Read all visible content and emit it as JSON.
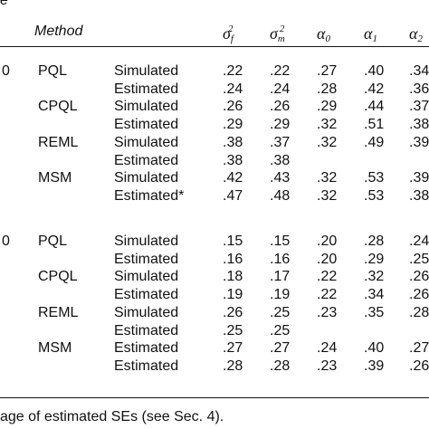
{
  "table": {
    "corner_fragment": "e",
    "method_header": "Method",
    "columns": [
      "σ_f^2",
      "σ_m^2",
      "α_0",
      "α_1",
      "α_2"
    ],
    "col_display": [
      {
        "base": "σ",
        "sub": "f",
        "sup": "2"
      },
      {
        "base": "σ",
        "sub": "m",
        "sup": "2"
      },
      {
        "base": "α",
        "sub": "0",
        "sup": ""
      },
      {
        "base": "α",
        "sub": "1",
        "sup": ""
      },
      {
        "base": "α",
        "sub": "2",
        "sup": ""
      }
    ],
    "groups": [
      {
        "size_fragment": "0",
        "methods": [
          {
            "name": "PQL",
            "rows": [
              {
                "type": "Simulated",
                "values": [
                  ".22",
                  ".22",
                  ".27",
                  ".40",
                  ".34"
                ]
              },
              {
                "type": "Estimated",
                "values": [
                  ".24",
                  ".24",
                  ".28",
                  ".42",
                  ".36"
                ]
              }
            ]
          },
          {
            "name": "CPQL",
            "rows": [
              {
                "type": "Simulated",
                "values": [
                  ".26",
                  ".26",
                  ".29",
                  ".44",
                  ".37"
                ]
              },
              {
                "type": "Estimated",
                "values": [
                  ".29",
                  ".29",
                  ".32",
                  ".51",
                  ".38"
                ]
              }
            ]
          },
          {
            "name": "REML",
            "rows": [
              {
                "type": "Simulated",
                "values": [
                  ".38",
                  ".37",
                  ".32",
                  ".49",
                  ".39"
                ]
              },
              {
                "type": "Estimated",
                "values": [
                  ".38",
                  ".38",
                  "",
                  "",
                  ""
                ]
              }
            ]
          },
          {
            "name": "MSM",
            "rows": [
              {
                "type": "Simulated",
                "values": [
                  ".42",
                  ".43",
                  ".32",
                  ".53",
                  ".39"
                ]
              },
              {
                "type": "Estimated*",
                "values": [
                  ".47",
                  ".48",
                  ".32",
                  ".53",
                  ".38"
                ]
              }
            ]
          }
        ]
      },
      {
        "size_fragment": "0",
        "methods": [
          {
            "name": "PQL",
            "rows": [
              {
                "type": "Simulated",
                "values": [
                  ".15",
                  ".15",
                  ".20",
                  ".28",
                  ".24"
                ]
              },
              {
                "type": "Estimated",
                "values": [
                  ".16",
                  ".16",
                  ".20",
                  ".29",
                  ".25"
                ]
              }
            ]
          },
          {
            "name": "CPQL",
            "rows": [
              {
                "type": "Simulated",
                "values": [
                  ".18",
                  ".17",
                  ".22",
                  ".32",
                  ".26"
                ]
              },
              {
                "type": "Estimated",
                "values": [
                  ".19",
                  ".19",
                  ".22",
                  ".34",
                  ".26"
                ]
              }
            ]
          },
          {
            "name": "REML",
            "rows": [
              {
                "type": "Simulated",
                "values": [
                  ".26",
                  ".25",
                  ".23",
                  ".35",
                  ".28"
                ]
              },
              {
                "type": "Estimated",
                "values": [
                  ".25",
                  ".25",
                  "",
                  "",
                  ""
                ]
              }
            ]
          },
          {
            "name": "MSM",
            "rows": [
              {
                "type": "Estimated",
                "values": [
                  ".27",
                  ".27",
                  ".24",
                  ".40",
                  ".27"
                ]
              },
              {
                "type": "Estimated",
                "values": [
                  ".28",
                  ".28",
                  ".23",
                  ".39",
                  ".26"
                ]
              }
            ]
          }
        ]
      }
    ],
    "footnote": "age of estimated SEs (see Sec. 4)."
  }
}
